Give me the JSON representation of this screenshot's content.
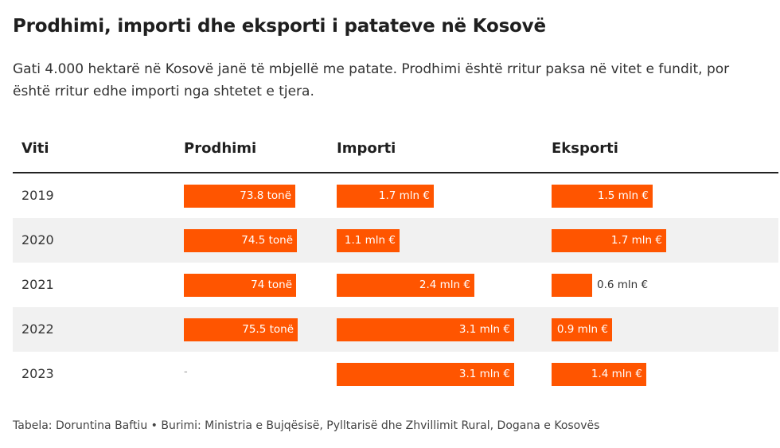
{
  "title": "Prodhimi, importi dhe eksporti i patateve në Kosovë",
  "subtitle": "Gati 4.000 hektarë në Kosovë janë të mbjellë me patate. Prodhimi është rritur paksa në vitet e fundit, por është rritur edhe importi nga shtetet e tjera.",
  "footer": "Tabela: Doruntina Baftiu • Burimi: Ministria e Bujqësisë, Pylltarisë dhe Zhvillimit Rural, Dogana e Kosovës",
  "colors": {
    "bar": "#ff5500",
    "shaded_row": "#f1f1f1"
  },
  "chart_data": {
    "type": "table",
    "columns": [
      "Viti",
      "Prodhimi",
      "Importi",
      "Eksporti"
    ],
    "rows": [
      {
        "year": "2019",
        "prodhimi": 73.8,
        "prodhimi_label": "73.8 tonë",
        "importi": 1.7,
        "importi_label": "1.7 mln €",
        "eksporti": 1.5,
        "eksporti_label": "1.5 mln €"
      },
      {
        "year": "2020",
        "prodhimi": 74.5,
        "prodhimi_label": "74.5 tonë",
        "importi": 1.1,
        "importi_label": "1.1 mln €",
        "eksporti": 1.7,
        "eksporti_label": "1.7 mln €"
      },
      {
        "year": "2021",
        "prodhimi": 74,
        "prodhimi_label": "74 tonë",
        "importi": 2.4,
        "importi_label": "2.4 mln €",
        "eksporti": 0.6,
        "eksporti_label": "0.6 mln €"
      },
      {
        "year": "2022",
        "prodhimi": 75.5,
        "prodhimi_label": "75.5 tonë",
        "importi": 3.1,
        "importi_label": "3.1 mln €",
        "eksporti": 0.9,
        "eksporti_label": "0.9 mln €"
      },
      {
        "year": "2023",
        "prodhimi": null,
        "prodhimi_label": "-",
        "importi": 3.1,
        "importi_label": "3.1 mln €",
        "eksporti": 1.4,
        "eksporti_label": "1.4 mln €"
      }
    ]
  }
}
